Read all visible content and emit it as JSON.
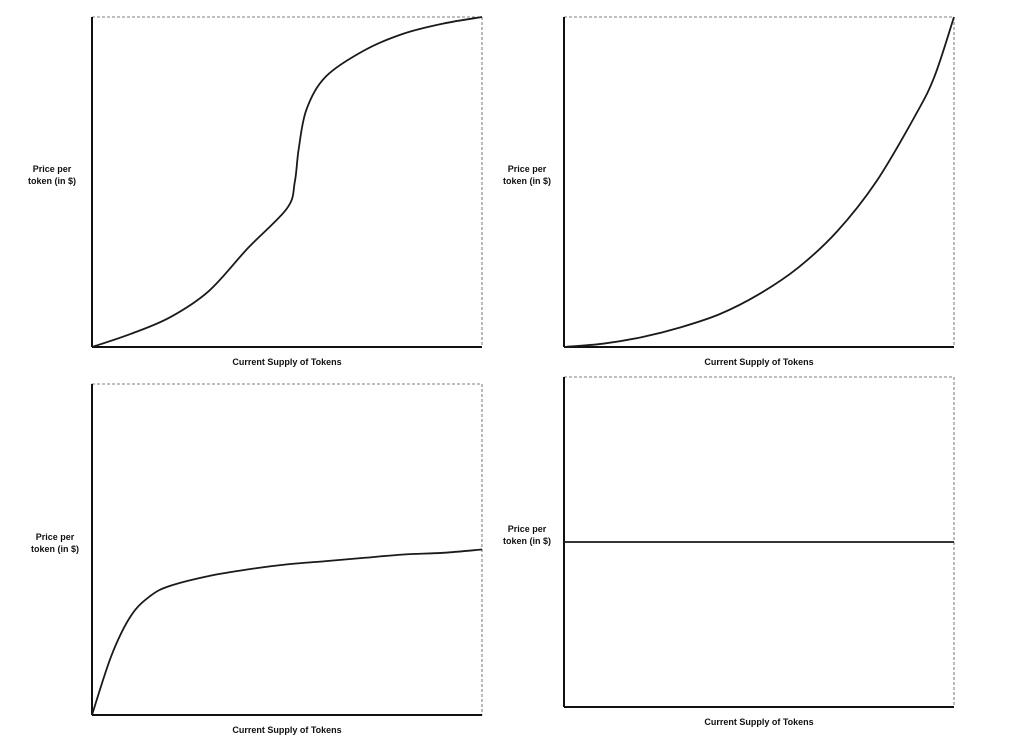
{
  "chart_data": [
    {
      "type": "line",
      "ylabel": [
        "Price per",
        "token (in $)"
      ],
      "xlabel": "Current Supply of Tokens",
      "curve": "sigmoid",
      "xlim": [
        0,
        1
      ],
      "ylim": [
        0,
        1
      ],
      "series": [
        {
          "x": [
            0,
            0.1,
            0.2,
            0.3,
            0.4,
            0.5,
            0.52,
            0.53,
            0.55,
            0.6,
            0.7,
            0.8,
            0.9,
            1.0
          ],
          "y": [
            0,
            0.04,
            0.09,
            0.17,
            0.3,
            0.42,
            0.5,
            0.6,
            0.72,
            0.82,
            0.9,
            0.95,
            0.98,
            1.0
          ]
        }
      ]
    },
    {
      "type": "line",
      "ylabel": [
        "Price per",
        "token (in $)"
      ],
      "xlabel": "Current Supply of Tokens",
      "curve": "exponential",
      "xlim": [
        0,
        1
      ],
      "ylim": [
        0,
        1
      ],
      "series": [
        {
          "x": [
            0,
            0.1,
            0.2,
            0.3,
            0.4,
            0.5,
            0.6,
            0.7,
            0.8,
            0.9,
            0.95,
            1.0
          ],
          "y": [
            0,
            0.01,
            0.03,
            0.06,
            0.1,
            0.16,
            0.24,
            0.35,
            0.5,
            0.7,
            0.82,
            1.0
          ]
        }
      ]
    },
    {
      "type": "line",
      "ylabel": [
        "Price per",
        "token (in $)"
      ],
      "xlabel": "Current Supply of Tokens",
      "curve": "logarithmic",
      "xlim": [
        0,
        1
      ],
      "ylim": [
        0,
        1
      ],
      "series": [
        {
          "x": [
            0,
            0.05,
            0.1,
            0.15,
            0.2,
            0.3,
            0.4,
            0.5,
            0.6,
            0.7,
            0.8,
            0.9,
            1.0
          ],
          "y": [
            0,
            0.18,
            0.3,
            0.36,
            0.39,
            0.42,
            0.44,
            0.455,
            0.465,
            0.475,
            0.485,
            0.49,
            0.5
          ]
        }
      ]
    },
    {
      "type": "line",
      "ylabel": [
        "Price per",
        "token (in $)"
      ],
      "xlabel": "Current Supply of Tokens",
      "curve": "constant",
      "xlim": [
        0,
        1
      ],
      "ylim": [
        0,
        1
      ],
      "series": [
        {
          "x": [
            0,
            1
          ],
          "y": [
            0.5,
            0.5
          ]
        }
      ]
    }
  ]
}
